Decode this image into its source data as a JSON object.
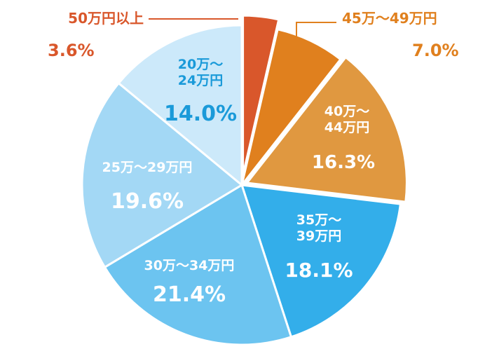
{
  "chart_data": {
    "type": "pie",
    "title": "",
    "slices": [
      {
        "label": "50万円以上",
        "value": 3.6,
        "display": "3.6%",
        "color": "#D9572B"
      },
      {
        "label": "45万～49万円",
        "value": 7.0,
        "display": "7.0%",
        "color": "#E0801E"
      },
      {
        "label": "40万～44万円",
        "value": 16.3,
        "display": "16.3%",
        "color": "#E09840"
      },
      {
        "label": "35万～39万円",
        "value": 18.1,
        "display": "18.1%",
        "color": "#33AEEA"
      },
      {
        "label": "30万～34万円",
        "value": 21.4,
        "display": "21.4%",
        "color": "#6CC4F0"
      },
      {
        "label": "25万～29万円",
        "value": 19.6,
        "display": "19.6%",
        "color": "#A3D8F5"
      },
      {
        "label": "20万～24万円",
        "value": 14.0,
        "display": "14.0%",
        "color": "#CCE9FA"
      }
    ]
  }
}
